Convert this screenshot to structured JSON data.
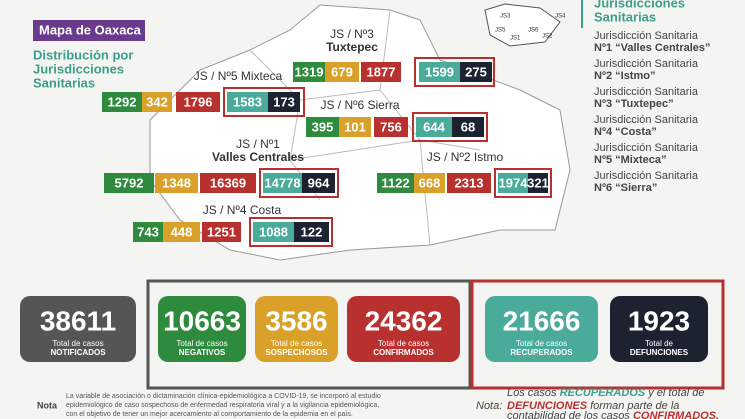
{
  "header": {
    "title": "Mapa de Oaxaca",
    "subtitle": [
      "Distribución por",
      "Jurisdicciones",
      "Sanitarias"
    ]
  },
  "mini_map": [
    "JS3",
    "JS5",
    "JS6",
    "JS1",
    "JS2",
    "JS4"
  ],
  "legend": {
    "title": [
      "Jurisdicciones",
      "Sanitarias"
    ],
    "items": [
      [
        "Jurisdicción Sanitaria",
        "Nº1 “Valles Centrales”"
      ],
      [
        "Jurisdicción Sanitaria",
        "Nº2 “Istmo”"
      ],
      [
        "Jurisdicción Sanitaria",
        "Nº3 “Tuxtepec”"
      ],
      [
        "Jurisdicción Sanitaria",
        "Nº4 “Costa”"
      ],
      [
        "Jurisdicción Sanitaria",
        "Nº5 “Mixteca”"
      ],
      [
        "Jurisdicción Sanitaria",
        "Nº6 “Sierra”"
      ]
    ]
  },
  "regions": [
    {
      "label": [
        "JS / Nº3",
        "Tuxtepec"
      ],
      "numbers": [
        "1319",
        "679",
        "1877",
        "1599",
        "275"
      ]
    },
    {
      "label": [
        "JS / Nº5 Mixteca"
      ],
      "numbers": [
        "1292",
        "342",
        "1796",
        "1583",
        "173"
      ]
    },
    {
      "label": [
        "JS / Nº6 Sierra"
      ],
      "numbers": [
        "395",
        "101",
        "756",
        "644",
        "68"
      ]
    },
    {
      "label": [
        "JS / Nº1",
        "Valles Centrales"
      ],
      "numbers": [
        "5792",
        "1348",
        "16369",
        "14778",
        "964"
      ]
    },
    {
      "label": [
        "JS / Nº2 Istmo"
      ],
      "numbers": [
        "1122",
        "668",
        "2313",
        "1974",
        "321"
      ]
    },
    {
      "label": [
        "JS / Nº4 Costa"
      ],
      "numbers": [
        "743",
        "448",
        "1251",
        "1088",
        "122"
      ]
    }
  ],
  "totals": [
    {
      "value": "38611",
      "caption": "Total de casos",
      "label": "NOTIFICADOS"
    },
    {
      "value": "10663",
      "caption": "Total de casos",
      "label": "NEGATIVOS"
    },
    {
      "value": "3586",
      "caption": "Total de casos",
      "label": "SOSPECHOSOS"
    },
    {
      "value": "24362",
      "caption": "Total de casos",
      "label": "CONFIRMADOS"
    },
    {
      "value": "21666",
      "caption": "Total de casos",
      "label": "RECUPERADOS"
    },
    {
      "value": "1923",
      "caption": "Total de",
      "label": "DEFUNCIONES"
    }
  ],
  "note_left": {
    "title": "Nota",
    "text": [
      "La variable de asociación o dictaminación clínica-epidemiológica a COVID-19, se incorporó al estudio",
      "epidemiológico de caso sospechoso de enfermedad respiratoria viral y a la vigilancia epidemiológica,",
      "con el objetivo de tener un mejor acercamiento al comportamiento de la epidemia en el país."
    ]
  },
  "note_right": {
    "title": "Nota:",
    "parts": [
      "Los casos ",
      "RECUPERADOS",
      " y el total de",
      "DEFUNCIONES",
      " forman parte de la",
      "contabilidad de los casos ",
      "CONFIRMADOS."
    ]
  }
}
